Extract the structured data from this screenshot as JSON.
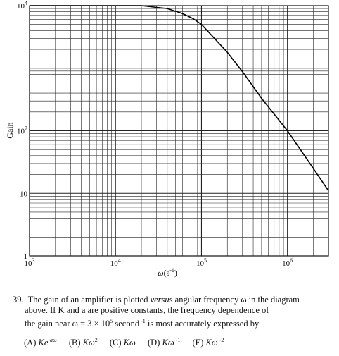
{
  "chart_data": {
    "type": "line",
    "scale": {
      "x": "log",
      "y": "log"
    },
    "xlim": [
      1000,
      3000000
    ],
    "ylim": [
      1,
      10000
    ],
    "grid": true,
    "xlabel_base": "ω",
    "xlabel_unit": "(s",
    "xlabel_exp": "-1",
    "xlabel_close": ")",
    "ylabel": "Gain",
    "x_ticks": [
      {
        "value": 1000,
        "base": "10",
        "exp": "3"
      },
      {
        "value": 10000,
        "base": "10",
        "exp": "4"
      },
      {
        "value": 100000,
        "base": "10",
        "exp": "5"
      },
      {
        "value": 1000000,
        "base": "10",
        "exp": "6"
      }
    ],
    "y_ticks": [
      {
        "value": 1,
        "base": "1",
        "exp": ""
      },
      {
        "value": 10,
        "base": "10",
        "exp": ""
      },
      {
        "value": 100,
        "base": "10",
        "exp": "2"
      },
      {
        "value": 10000,
        "base": "10",
        "exp": "4"
      }
    ],
    "series": [
      {
        "x": [
          1000,
          5000,
          10000,
          20000,
          40000,
          60000,
          80000,
          100000,
          200000,
          300000,
          500000,
          1000000,
          2000000,
          3000000
        ],
        "y": [
          10000,
          10000,
          10000,
          10000,
          9000,
          7500,
          6200,
          5000,
          1800,
          880,
          330,
          100,
          25,
          11
        ]
      }
    ]
  },
  "question": {
    "number": "39.",
    "line1_a": "The gain of an amplifier is plotted ",
    "line1_italic": "versus",
    "line1_b": " angular frequency  ω  in the diagram",
    "line2": "above. If  K  and  a  are positive constants, the frequency dependence of",
    "line3_a": "the gain near   ω = 3 × 10",
    "line3_exp": "5",
    "line3_b": "  second",
    "line3_exp2": " -1",
    "line3_c": "  is most accurately expressed by"
  },
  "choices": [
    {
      "label": "(A)",
      "base": "Ke",
      "exp": "-aω"
    },
    {
      "label": "(B)",
      "base": "Kω",
      "exp": "2"
    },
    {
      "label": "(C)",
      "base": "Kω",
      "exp": ""
    },
    {
      "label": "(D)",
      "base": "Kω",
      "exp": " -1"
    },
    {
      "label": "(E)",
      "base": "Kω",
      "exp": " -2"
    }
  ]
}
